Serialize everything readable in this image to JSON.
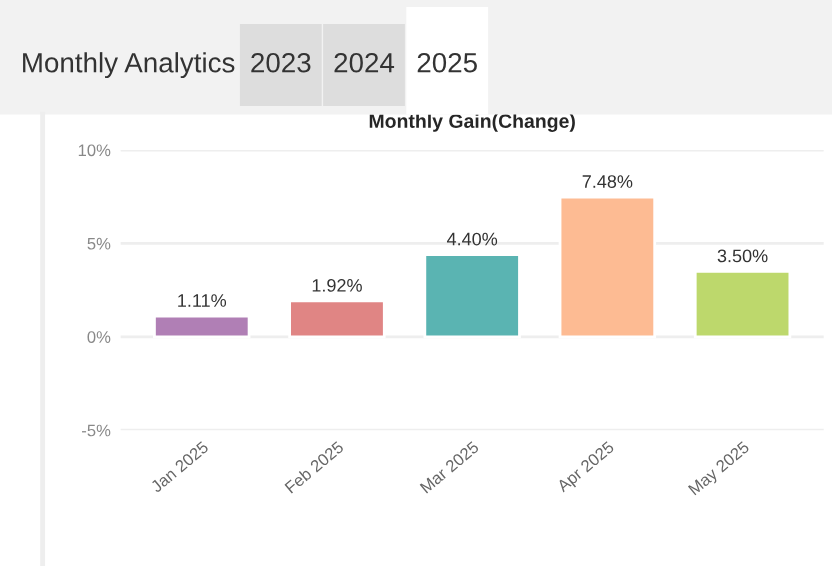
{
  "chart_data": {
    "type": "bar",
    "title": "Monthly Gain(Change)",
    "annotations": [
      "Monthly Analytics",
      "2023",
      "2024",
      "2025"
    ],
    "categories": [
      "Jan 2025",
      "Feb 2025",
      "Mar 2025",
      "Apr 2025",
      "May 2025"
    ],
    "values": [
      1.11,
      1.92,
      4.4,
      7.48,
      3.5
    ],
    "colors": [
      "#b07fb5",
      "#e08584",
      "#5ab4b2",
      "#fdbb93",
      "#bdd86c"
    ],
    "value_labels": [
      "1.11%",
      "1.92%",
      "4.40%",
      "7.48%",
      "3.50%"
    ],
    "ylim": [
      -5,
      10
    ],
    "yticks": [
      {
        "value": -5,
        "label": "-5%"
      },
      {
        "value": 0,
        "label": "0%"
      },
      {
        "value": 5,
        "label": "5%"
      },
      {
        "value": 10,
        "label": "10%"
      }
    ],
    "grid": "y",
    "legend": false
  }
}
